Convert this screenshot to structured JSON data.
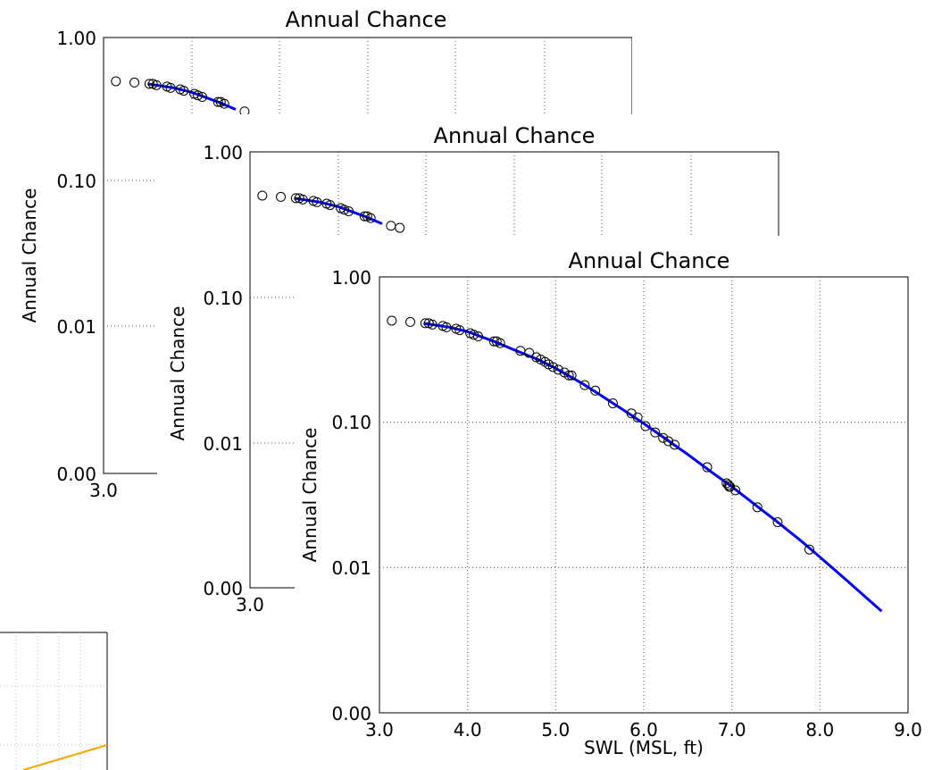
{
  "windows": [
    {
      "id": "figure-window-1",
      "title": "Annual Chance",
      "ylabel": "Annual Chance",
      "y_ticks": [
        "1.00",
        "0.10",
        "0.01",
        "0.00"
      ],
      "x_ticks_visible": [
        "3.0"
      ]
    },
    {
      "id": "figure-window-2",
      "title": "Annual Chance",
      "ylabel": "Annual Chance",
      "y_ticks": [
        "1.00",
        "0.10",
        "0.01",
        "0.00"
      ],
      "x_ticks_visible": [
        "3.0"
      ]
    },
    {
      "id": "figure-window-3",
      "title": "Annual Chance",
      "ylabel": "Annual Chance",
      "xlabel": "SWL (MSL, ft)",
      "y_ticks": [
        "1.00",
        "0.10",
        "0.01",
        "0.00"
      ],
      "x_ticks": [
        "3.0",
        "4.0",
        "5.0",
        "6.0",
        "7.0",
        "8.0",
        "9.0"
      ]
    }
  ],
  "colors": {
    "fit_line": "#0000ff",
    "markers": "#000000",
    "grid": "#7f7f7f",
    "background_plot_line": "#ffa500"
  },
  "chart_data": {
    "type": "scatter",
    "title": "Annual Chance",
    "xlabel": "SWL (MSL, ft)",
    "ylabel": "Annual Chance",
    "xlim": [
      3.0,
      9.0
    ],
    "ylim": [
      0.001,
      1.0
    ],
    "y_scale": "log",
    "grid": true,
    "observations": {
      "x": [
        3.14,
        3.35,
        3.52,
        3.56,
        3.6,
        3.72,
        3.76,
        3.87,
        3.91,
        4.03,
        4.07,
        4.12,
        4.3,
        4.33,
        4.37,
        4.6,
        4.7,
        4.78,
        4.83,
        4.88,
        4.92,
        4.97,
        5.03,
        5.1,
        5.15,
        5.18,
        5.33,
        5.45,
        5.65,
        5.86,
        5.93,
        6.02,
        6.13,
        6.22,
        6.28,
        6.35,
        6.72,
        6.94,
        6.96,
        6.97,
        6.98,
        7.04,
        7.29,
        7.52,
        7.88
      ],
      "y": [
        0.5,
        0.49,
        0.48,
        0.48,
        0.47,
        0.46,
        0.45,
        0.44,
        0.43,
        0.41,
        0.4,
        0.39,
        0.36,
        0.36,
        0.35,
        0.31,
        0.3,
        0.28,
        0.27,
        0.26,
        0.25,
        0.24,
        0.23,
        0.22,
        0.21,
        0.21,
        0.18,
        0.165,
        0.135,
        0.115,
        0.108,
        0.094,
        0.085,
        0.078,
        0.074,
        0.07,
        0.049,
        0.038,
        0.037,
        0.036,
        0.036,
        0.034,
        0.026,
        0.0205,
        0.0133
      ]
    },
    "fit": {
      "x": [
        3.5,
        3.8,
        4.0,
        4.3,
        4.5,
        4.8,
        5.0,
        5.3,
        5.5,
        5.8,
        6.0,
        6.3,
        6.5,
        6.8,
        7.0,
        7.3,
        7.5,
        7.8,
        8.0,
        8.3,
        8.5,
        8.7
      ],
      "y": [
        0.48,
        0.45,
        0.42,
        0.36,
        0.32,
        0.27,
        0.235,
        0.185,
        0.155,
        0.118,
        0.098,
        0.073,
        0.06,
        0.044,
        0.036,
        0.026,
        0.021,
        0.015,
        0.0118,
        0.0082,
        0.0064,
        0.005
      ]
    }
  }
}
